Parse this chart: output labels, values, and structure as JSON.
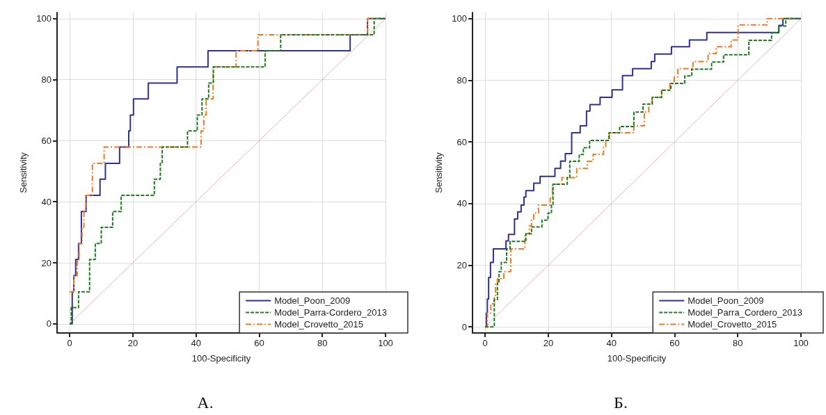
{
  "chart_data": [
    {
      "type": "step",
      "xlabel": "100-Specificity",
      "ylabel": "Sensitivity",
      "annotations": [
        "А."
      ],
      "xlim": [
        -4,
        100
      ],
      "ylim": [
        -3,
        102
      ],
      "xticks": [
        0,
        20,
        40,
        60,
        80,
        100
      ],
      "yticks": [
        0,
        20,
        40,
        60,
        80,
        100
      ],
      "grid": true,
      "legend": "bottom right",
      "marker": "none",
      "series": [
        {
          "name": "Model_Poon_2009",
          "color": "#2e3192",
          "line_style": "solid",
          "x": [
            0,
            0.8,
            1.3,
            1.9,
            2.8,
            3.7,
            5.2,
            9.6,
            11.3,
            15.8,
            18.7,
            19.2,
            20.2,
            24.9,
            34,
            43.8,
            88.8,
            94.3,
            100
          ],
          "values": [
            0,
            10.5,
            15.8,
            21.1,
            26.3,
            36.8,
            42.1,
            47.4,
            52.6,
            57.9,
            63.2,
            68.4,
            73.7,
            78.9,
            84.2,
            89.5,
            94.7,
            100,
            100
          ]
        },
        {
          "name": "Model_Parra-Cordero_2013",
          "color": "#1e7b1e",
          "line_style": "dashed",
          "x": [
            0,
            0.5,
            2.8,
            6.3,
            8.1,
            10,
            13.6,
            16.3,
            26.8,
            28.7,
            29.3,
            37.3,
            40.4,
            41.9,
            44,
            45.5,
            61.9,
            66.8,
            96.4,
            100
          ],
          "values": [
            0,
            5.3,
            10.5,
            21.1,
            26.3,
            31.6,
            36.8,
            42.1,
            47.4,
            52.6,
            57.9,
            63.2,
            68.4,
            73.7,
            78.9,
            84.2,
            89.5,
            94.7,
            100,
            100
          ]
        },
        {
          "name": "Model_Crovetto_2015",
          "color": "#f47a20",
          "line_style": "dashdot",
          "x": [
            0,
            1.3,
            2.4,
            3,
            3.9,
            4.5,
            5.1,
            7.2,
            10.9,
            41.6,
            42.5,
            43.2,
            45.4,
            52.7,
            59.6,
            94.3,
            100
          ],
          "values": [
            10.5,
            15.8,
            21.1,
            26.3,
            31.6,
            36.8,
            42.1,
            52.6,
            57.9,
            63.2,
            68.4,
            73.7,
            84.2,
            89.5,
            94.7,
            100,
            100
          ]
        },
        {
          "type": "line",
          "color": "#e2b4bc",
          "line_style": "solid",
          "x": [
            0,
            100
          ],
          "values": [
            0,
            100
          ]
        }
      ]
    },
    {
      "type": "step",
      "xlabel": "100-Specificity",
      "ylabel": "Sensitivity",
      "annotations": [
        "Б."
      ],
      "xlim": [
        -4,
        100
      ],
      "ylim": [
        -2,
        102
      ],
      "xticks": [
        0,
        20,
        40,
        60,
        80,
        100
      ],
      "yticks": [
        0,
        20,
        40,
        60,
        80,
        100
      ],
      "grid": true,
      "legend": "bottom right",
      "marker": "none",
      "series": [
        {
          "name": "Model_Poon_2009",
          "color": "#2e3192",
          "line_style": "solid",
          "x": [
            0,
            0.4,
            0.7,
            1.1,
            1.7,
            2.6,
            6.6,
            7.4,
            9.3,
            10.3,
            11.4,
            12.3,
            12.9,
            15.4,
            17.4,
            22.1,
            23.9,
            25.4,
            27.4,
            30.1,
            32.1,
            33.2,
            36.4,
            40.2,
            43.5,
            46.7,
            52.6,
            53.7,
            59,
            64.7,
            70.2,
            93,
            94.3,
            100
          ],
          "values": [
            0,
            4.5,
            9,
            16,
            20.9,
            25.3,
            27.9,
            30,
            35,
            37.3,
            39.5,
            42.1,
            44.2,
            46.6,
            48.8,
            51.4,
            53.8,
            56.2,
            63,
            65.2,
            70,
            72.1,
            74.5,
            76.9,
            81.5,
            83.8,
            86.1,
            88.5,
            90.9,
            93.1,
            95.5,
            97.8,
            100,
            100
          ]
        },
        {
          "name": "Model_Parra_Cordero_2013",
          "color": "#1e7b1e",
          "line_style": "dashed",
          "x": [
            0,
            2.9,
            3.9,
            4.4,
            5.1,
            6.8,
            7.9,
            12.9,
            14.7,
            18,
            19.9,
            21,
            21.5,
            26,
            26.8,
            29.8,
            31.1,
            33.1,
            39.2,
            42.6,
            47.1,
            50,
            52.9,
            55.9,
            58.8,
            63.2,
            65.4,
            71.7,
            75.5,
            83.5,
            90.7,
            93,
            95.2,
            100
          ],
          "values": [
            0,
            8.9,
            14.2,
            17.9,
            20.9,
            25.3,
            27.7,
            30.2,
            32.4,
            34.6,
            36.9,
            39.5,
            46.3,
            48.4,
            53.7,
            55.9,
            58.1,
            60.5,
            63,
            65,
            69.7,
            72.3,
            74.5,
            76.8,
            79,
            81.4,
            83.6,
            85.9,
            88.3,
            93,
            95.4,
            97.6,
            100,
            100
          ]
        },
        {
          "name": "Model_Crovetto_2015",
          "color": "#f47a20",
          "line_style": "dashdot",
          "x": [
            0,
            0.7,
            1.8,
            2.9,
            3.3,
            3.9,
            5.9,
            8.1,
            12.6,
            14,
            14.7,
            15.4,
            16.9,
            20.6,
            21.3,
            24.3,
            29,
            32.4,
            34.2,
            37.5,
            38.2,
            39.3,
            47.1,
            50.4,
            51.8,
            52.9,
            55.9,
            58.5,
            59.9,
            61,
            65.8,
            70.6,
            73.2,
            77.9,
            80.1,
            89.3,
            100
          ],
          "values": [
            0,
            4.5,
            7.5,
            9.7,
            14.2,
            15.6,
            17.9,
            25.3,
            30.2,
            32.8,
            35,
            36.9,
            39.5,
            41.7,
            46.3,
            48.4,
            51.4,
            53.7,
            56,
            58.5,
            60.5,
            63,
            65.2,
            69.7,
            72.3,
            74.5,
            76.8,
            79,
            81.1,
            83.8,
            86.1,
            88.7,
            90.9,
            93.1,
            98,
            100,
            100
          ]
        },
        {
          "type": "line",
          "color": "#e2b4bc",
          "line_style": "solid",
          "x": [
            0,
            100
          ],
          "values": [
            0,
            100
          ]
        }
      ]
    }
  ]
}
